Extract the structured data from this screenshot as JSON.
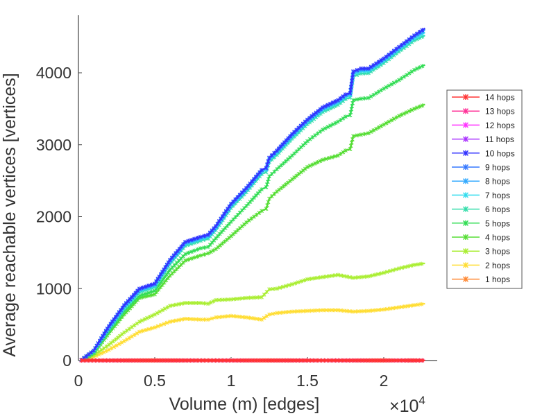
{
  "chart_data": {
    "type": "line",
    "title": "",
    "xlabel": "Volume (m) [edges]",
    "ylabel": "Average reachable vertices [vertices]",
    "x_multiplier_label": "×10",
    "x_multiplier_exponent": "4",
    "xlim": [
      0,
      2.35
    ],
    "ylim": [
      0,
      4800
    ],
    "xticks": [
      0,
      0.5,
      1,
      1.5,
      2
    ],
    "xtick_labels": [
      "0",
      "0.5",
      "1",
      "1.5",
      "2"
    ],
    "yticks": [
      0,
      1000,
      2000,
      3000,
      4000
    ],
    "ytick_labels": [
      "0",
      "1000",
      "2000",
      "3000",
      "4000"
    ],
    "grid": false,
    "legend_position": "right",
    "series": [
      {
        "name": "14 hops",
        "color": "#ff3333",
        "x": [
          0.02,
          2.27
        ],
        "y": [
          1,
          1
        ]
      },
      {
        "name": "13 hops",
        "color": "#ff3399",
        "x": [
          0.02,
          2.27
        ],
        "y": [
          1,
          1
        ]
      },
      {
        "name": "12 hops",
        "color": "#ff33ff",
        "x": [
          0.02,
          2.27
        ],
        "y": [
          1,
          1
        ]
      },
      {
        "name": "11 hops",
        "color": "#aa33ff",
        "x": [
          0.02,
          2.27
        ],
        "y": [
          1,
          1
        ]
      },
      {
        "name": "10 hops",
        "color": "#3333ff",
        "x": [
          0.02,
          0.1,
          0.2,
          0.3,
          0.4,
          0.5,
          0.6,
          0.7,
          0.8,
          0.85,
          0.9,
          1.0,
          1.1,
          1.2,
          1.23,
          1.25,
          1.3,
          1.4,
          1.5,
          1.6,
          1.7,
          1.75,
          1.78,
          1.8,
          1.85,
          1.9,
          2.0,
          2.1,
          2.2,
          2.27
        ],
        "y": [
          10,
          140,
          480,
          770,
          1000,
          1070,
          1400,
          1650,
          1720,
          1750,
          1870,
          2180,
          2400,
          2650,
          2680,
          2820,
          2920,
          3150,
          3350,
          3520,
          3620,
          3700,
          3720,
          4020,
          4060,
          4060,
          4200,
          4360,
          4520,
          4620
        ]
      },
      {
        "name": "9 hops",
        "color": "#3377ff",
        "x": [
          0.02,
          0.1,
          0.2,
          0.3,
          0.4,
          0.5,
          0.6,
          0.7,
          0.8,
          0.85,
          0.9,
          1.0,
          1.1,
          1.2,
          1.23,
          1.25,
          1.3,
          1.4,
          1.5,
          1.6,
          1.7,
          1.75,
          1.78,
          1.8,
          1.85,
          1.9,
          2.0,
          2.1,
          2.2,
          2.27
        ],
        "y": [
          10,
          138,
          475,
          765,
          995,
          1065,
          1395,
          1645,
          1715,
          1745,
          1865,
          2175,
          2395,
          2645,
          2675,
          2815,
          2915,
          3145,
          3345,
          3515,
          3615,
          3695,
          3715,
          4015,
          4055,
          4055,
          4195,
          4355,
          4515,
          4610
        ]
      },
      {
        "name": "8 hops",
        "color": "#33aaff",
        "x": [
          0.02,
          0.1,
          0.2,
          0.3,
          0.4,
          0.5,
          0.6,
          0.7,
          0.8,
          0.85,
          0.9,
          1.0,
          1.1,
          1.2,
          1.23,
          1.25,
          1.3,
          1.4,
          1.5,
          1.6,
          1.7,
          1.75,
          1.78,
          1.8,
          1.85,
          1.9,
          2.0,
          2.1,
          2.2,
          2.27
        ],
        "y": [
          10,
          135,
          465,
          755,
          985,
          1055,
          1385,
          1635,
          1705,
          1735,
          1855,
          2165,
          2385,
          2635,
          2665,
          2805,
          2905,
          3135,
          3335,
          3505,
          3605,
          3685,
          3705,
          4000,
          4040,
          4045,
          4185,
          4345,
          4505,
          4595
        ]
      },
      {
        "name": "7 hops",
        "color": "#33ddee",
        "x": [
          0.02,
          0.1,
          0.2,
          0.3,
          0.4,
          0.5,
          0.6,
          0.7,
          0.8,
          0.85,
          0.9,
          1.0,
          1.1,
          1.2,
          1.23,
          1.25,
          1.3,
          1.4,
          1.5,
          1.6,
          1.7,
          1.75,
          1.78,
          1.8,
          1.85,
          1.9,
          2.0,
          2.1,
          2.2,
          2.27
        ],
        "y": [
          10,
          130,
          455,
          740,
          970,
          1040,
          1370,
          1620,
          1690,
          1720,
          1840,
          2150,
          2370,
          2620,
          2650,
          2790,
          2890,
          3115,
          3315,
          3485,
          3585,
          3665,
          3685,
          3980,
          4020,
          4025,
          4165,
          4325,
          4480,
          4560
        ]
      },
      {
        "name": "6 hops",
        "color": "#33ddaa",
        "x": [
          0.02,
          0.1,
          0.2,
          0.3,
          0.4,
          0.5,
          0.6,
          0.7,
          0.8,
          0.85,
          0.9,
          1.0,
          1.1,
          1.2,
          1.23,
          1.25,
          1.3,
          1.4,
          1.5,
          1.6,
          1.7,
          1.75,
          1.78,
          1.8,
          1.85,
          1.9,
          2.0,
          2.1,
          2.2,
          2.27
        ],
        "y": [
          10,
          125,
          440,
          720,
          950,
          1020,
          1345,
          1595,
          1665,
          1695,
          1815,
          2120,
          2340,
          2590,
          2620,
          2760,
          2860,
          3085,
          3285,
          3455,
          3555,
          3635,
          3655,
          3950,
          3990,
          3995,
          4135,
          4295,
          4450,
          4520
        ]
      },
      {
        "name": "5 hops",
        "color": "#33dd55",
        "x": [
          0.02,
          0.1,
          0.2,
          0.3,
          0.4,
          0.5,
          0.6,
          0.7,
          0.8,
          0.85,
          0.9,
          1.0,
          1.1,
          1.2,
          1.23,
          1.25,
          1.3,
          1.4,
          1.5,
          1.6,
          1.7,
          1.75,
          1.78,
          1.8,
          1.85,
          1.9,
          2.0,
          2.1,
          2.2,
          2.27
        ],
        "y": [
          8,
          115,
          410,
          680,
          900,
          970,
          1260,
          1480,
          1560,
          1580,
          1700,
          1930,
          2150,
          2380,
          2410,
          2560,
          2660,
          2850,
          3050,
          3210,
          3320,
          3390,
          3410,
          3620,
          3640,
          3650,
          3780,
          3900,
          4040,
          4110
        ]
      },
      {
        "name": "4 hops",
        "color": "#55dd33",
        "x": [
          0.02,
          0.1,
          0.2,
          0.3,
          0.4,
          0.5,
          0.6,
          0.7,
          0.8,
          0.85,
          0.9,
          1.0,
          1.1,
          1.2,
          1.23,
          1.25,
          1.3,
          1.4,
          1.5,
          1.6,
          1.7,
          1.75,
          1.78,
          1.8,
          1.85,
          1.9,
          2.0,
          2.1,
          2.2,
          2.27
        ],
        "y": [
          6,
          100,
          380,
          640,
          870,
          920,
          1180,
          1390,
          1460,
          1490,
          1550,
          1730,
          1920,
          2080,
          2110,
          2250,
          2350,
          2520,
          2690,
          2790,
          2850,
          2920,
          2940,
          3120,
          3140,
          3160,
          3280,
          3400,
          3500,
          3560
        ]
      },
      {
        "name": "3 hops",
        "color": "#aaee33",
        "x": [
          0.02,
          0.1,
          0.2,
          0.3,
          0.4,
          0.5,
          0.6,
          0.7,
          0.8,
          0.85,
          0.9,
          1.0,
          1.1,
          1.2,
          1.25,
          1.3,
          1.4,
          1.5,
          1.6,
          1.7,
          1.8,
          1.9,
          2.0,
          2.1,
          2.2,
          2.27
        ],
        "y": [
          4,
          70,
          220,
          390,
          540,
          640,
          760,
          800,
          800,
          790,
          840,
          850,
          870,
          880,
          990,
          1000,
          1060,
          1130,
          1160,
          1190,
          1150,
          1170,
          1220,
          1280,
          1330,
          1350
        ]
      },
      {
        "name": "2 hops",
        "color": "#ffdd33",
        "x": [
          0.02,
          0.1,
          0.2,
          0.3,
          0.4,
          0.5,
          0.6,
          0.7,
          0.8,
          0.85,
          0.9,
          1.0,
          1.1,
          1.2,
          1.25,
          1.3,
          1.4,
          1.5,
          1.6,
          1.7,
          1.8,
          1.9,
          2.0,
          2.1,
          2.2,
          2.27
        ],
        "y": [
          3,
          50,
          150,
          270,
          400,
          460,
          540,
          580,
          570,
          570,
          600,
          620,
          600,
          570,
          640,
          660,
          680,
          690,
          700,
          700,
          680,
          690,
          710,
          740,
          770,
          790
        ]
      },
      {
        "name": "1 hops",
        "color": "#ff8833",
        "x": [
          0.02,
          0.5,
          1.0,
          1.5,
          2.0,
          2.27
        ],
        "y": [
          2,
          2,
          2,
          2,
          2,
          2
        ]
      }
    ]
  }
}
